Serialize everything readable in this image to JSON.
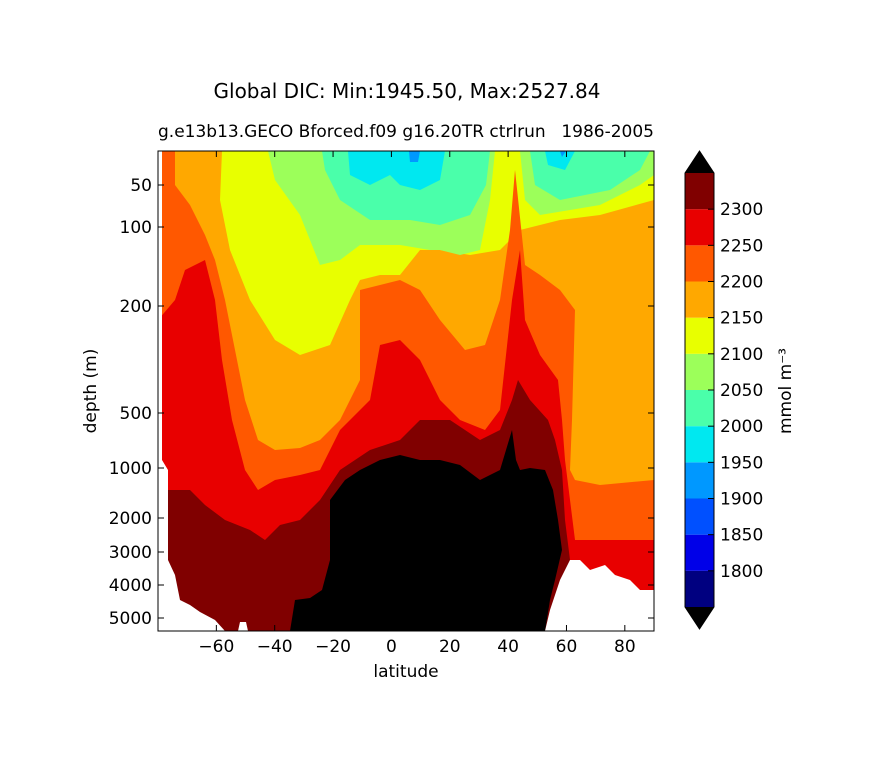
{
  "chart_data": {
    "type": "contour",
    "title": "Global DIC: Min:1945.50, Max:2527.84",
    "subtitle_left": "g.e13b13.GECO Bforced.f09 g16.20TR ctrlrun",
    "subtitle_right": "1986-2005",
    "xlabel": "latitude",
    "ylabel": "depth (m)",
    "xlim": [
      -80,
      90
    ],
    "x_ticks": [
      -60,
      -40,
      -20,
      0,
      20,
      40,
      60,
      80
    ],
    "x_tick_labels": [
      "−60",
      "−40",
      "−20",
      "0",
      "20",
      "40",
      "60",
      "80"
    ],
    "y_ticks": [
      50,
      100,
      200,
      500,
      1000,
      2000,
      3000,
      4000,
      5000
    ],
    "y_tick_labels": [
      "50",
      "100",
      "200",
      "500",
      "1000",
      "2000",
      "3000",
      "4000",
      "5000"
    ],
    "y_axis": "depth, increasing downward (nonlinear)",
    "colorbar": {
      "label": "mmol m⁻³",
      "levels": [
        1750,
        1800,
        1850,
        1900,
        1950,
        2000,
        2050,
        2100,
        2150,
        2200,
        2250,
        2300,
        2350
      ],
      "tick_labels": [
        "1800",
        "1850",
        "1900",
        "1950",
        "2000",
        "2050",
        "2100",
        "2150",
        "2200",
        "2250",
        "2300"
      ],
      "colors": [
        "#000080",
        "#0000e8",
        "#0050ff",
        "#0098ff",
        "#00e8f0",
        "#4affaa",
        "#9cff5a",
        "#e8ff00",
        "#ffa800",
        "#ff5800",
        "#e80000",
        "#800000"
      ],
      "extend": "both",
      "extend_under_color": "#000000",
      "extend_over_color": "#000000",
      "land_color": "#ffffff",
      "above_max_color": "#000000"
    }
  }
}
